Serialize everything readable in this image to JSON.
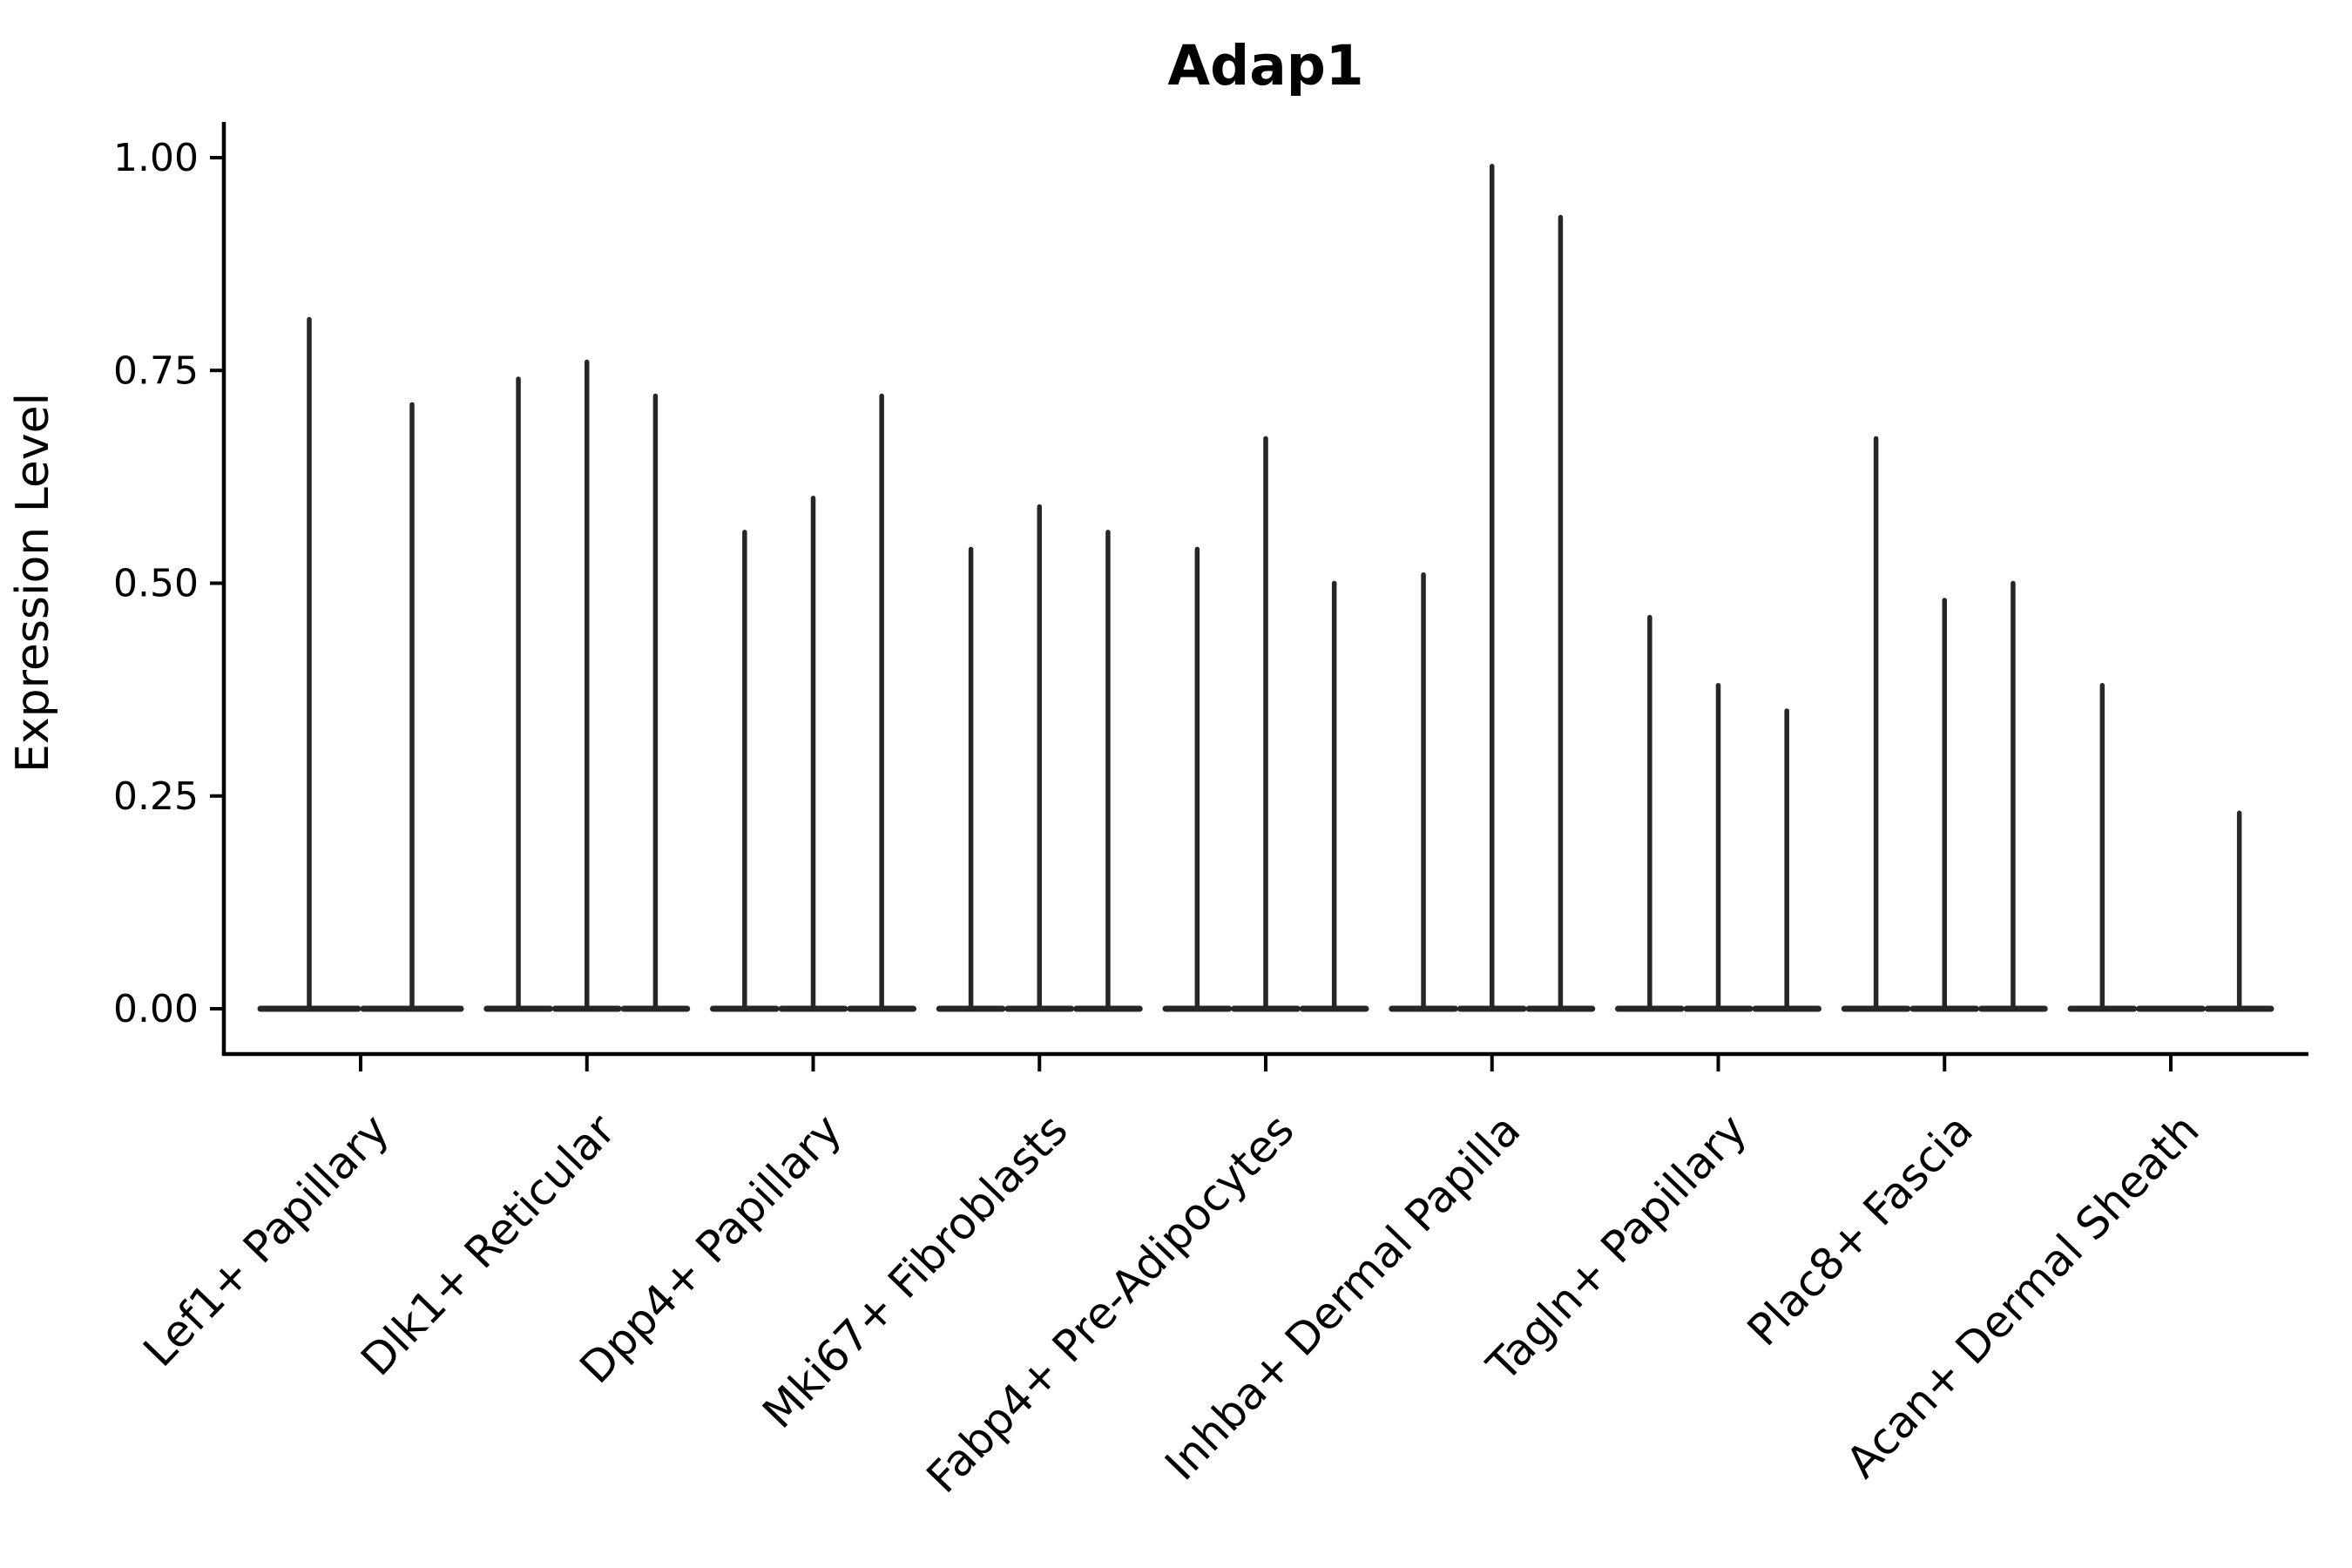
{
  "title": "Adap1",
  "y_axis": {
    "label": "Expression Level",
    "tick_labels": [
      "0.00",
      "0.25",
      "0.50",
      "0.75",
      "1.00"
    ],
    "tick_values": [
      0,
      0.25,
      0.5,
      0.75,
      1.0
    ]
  },
  "x_axis": {
    "categories": [
      "Lef1+ Papillary",
      "Dlk1+ Reticular",
      "Dpp4+ Papillary",
      "Mki67+ Fibroblasts",
      "Fabp4+ Pre-Adipocytes",
      "Inhba+ Dermal Papilla",
      "Tagln+ Papillary",
      "Plac8+ Fascia",
      "Acan+ Dermal Sheath"
    ]
  },
  "colors": {
    "violin": "#262626",
    "axis": "#000000",
    "text": "#000000",
    "background": "#ffffff"
  },
  "chart_data": {
    "type": "violin",
    "title": "Adap1",
    "xlabel": "",
    "ylabel": "Expression Level",
    "ylim": [
      0,
      1.05
    ],
    "y_ticks": [
      0,
      0.25,
      0.5,
      0.75,
      1.0
    ],
    "y_tick_labels": [
      "0.00",
      "0.25",
      "0.50",
      "0.75",
      "1.00"
    ],
    "grid": false,
    "legend": "none",
    "violin_shape": "zero-inflated spike: maximum width at expression 0, thin vertical spike up to max expression",
    "categories": [
      "Lef1+ Papillary",
      "Dlk1+ Reticular",
      "Dpp4+ Papillary",
      "Mki67+ Fibroblasts",
      "Fabp4+ Pre-Adipocytes",
      "Inhba+ Dermal Papilla",
      "Tagln+ Papillary",
      "Plac8+ Fascia",
      "Acan+ Dermal Sheath"
    ],
    "series": [
      {
        "category": "Lef1+ Papillary",
        "violin_maxima": [
          0.81,
          0.71
        ]
      },
      {
        "category": "Dlk1+ Reticular",
        "violin_maxima": [
          0.74,
          0.76,
          0.72
        ]
      },
      {
        "category": "Dpp4+ Papillary",
        "violin_maxima": [
          0.56,
          0.6,
          0.72
        ]
      },
      {
        "category": "Mki67+ Fibroblasts",
        "violin_maxima": [
          0.54,
          0.59,
          0.56
        ]
      },
      {
        "category": "Fabp4+ Pre-Adipocytes",
        "violin_maxima": [
          0.54,
          0.67,
          0.5
        ]
      },
      {
        "category": "Inhba+ Dermal Papilla",
        "violin_maxima": [
          0.51,
          0.99,
          0.93
        ]
      },
      {
        "category": "Tagln+ Papillary",
        "violin_maxima": [
          0.46,
          0.38,
          0.35
        ]
      },
      {
        "category": "Plac8+ Fascia",
        "violin_maxima": [
          0.67,
          0.48,
          0.5
        ]
      },
      {
        "category": "Acan+ Dermal Sheath",
        "violin_maxima": [
          0.38,
          0.0,
          0.23
        ]
      }
    ]
  }
}
